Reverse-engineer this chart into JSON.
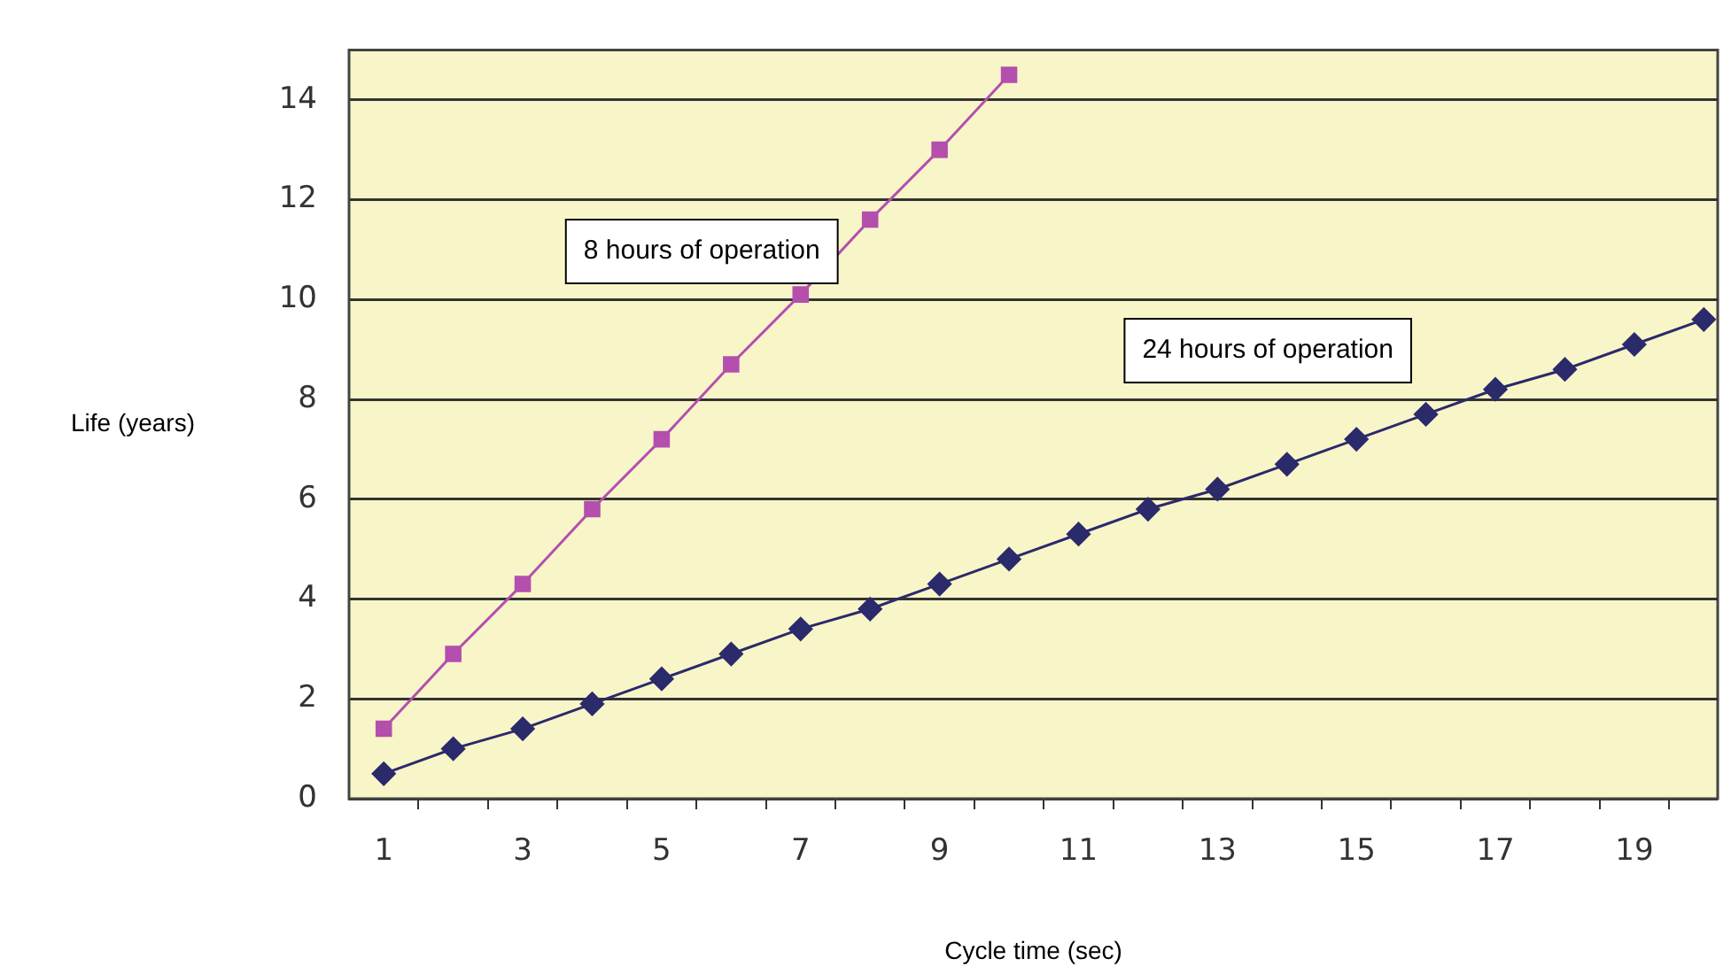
{
  "chart_data": {
    "type": "line",
    "xlabel": "Cycle time (sec)",
    "ylabel": "Life (years)",
    "x": [
      1,
      2,
      3,
      4,
      5,
      6,
      7,
      8,
      9,
      10,
      11,
      12,
      13,
      14,
      15,
      16,
      17,
      18,
      19,
      20
    ],
    "xlim": [
      0.5,
      20.2
    ],
    "xticks": [
      1,
      {
        "value": 1.5,
        "label": null
      },
      {
        "value": 2.5,
        "label": null
      },
      3,
      {
        "value": 3.5,
        "label": null
      },
      {
        "value": 4.5,
        "label": null
      },
      5,
      {
        "value": 5.5,
        "label": null
      },
      {
        "value": 6.5,
        "label": null
      },
      7,
      {
        "value": 7.5,
        "label": null
      },
      {
        "value": 8.5,
        "label": null
      },
      9,
      {
        "value": 9.5,
        "label": null
      },
      {
        "value": 10.5,
        "label": null
      },
      11,
      {
        "value": 11.5,
        "label": null
      },
      {
        "value": 12.5,
        "label": null
      },
      13,
      {
        "value": 13.5,
        "label": null
      },
      {
        "value": 14.5,
        "label": null
      },
      15,
      {
        "value": 15.5,
        "label": null
      },
      {
        "value": 16.5,
        "label": null
      },
      17,
      {
        "value": 17.5,
        "label": null
      },
      {
        "value": 18.5,
        "label": null
      },
      19,
      {
        "value": 19.5,
        "label": null
      }
    ],
    "series": [
      {
        "name": "8 hours of operation",
        "color": "#b44fae",
        "marker": "square",
        "values": [
          1.4,
          2.9,
          4.3,
          5.8,
          7.2,
          8.7,
          10.1,
          11.6,
          13.0,
          14.5,
          null,
          null,
          null,
          null,
          null,
          null,
          null,
          null,
          null,
          null
        ]
      },
      {
        "name": "24 hours of operation",
        "color": "#2b2a6b",
        "marker": "diamond",
        "values": [
          0.5,
          1.0,
          1.4,
          1.9,
          2.4,
          2.9,
          3.4,
          3.8,
          4.3,
          4.8,
          5.3,
          5.8,
          6.2,
          6.7,
          7.2,
          7.7,
          8.2,
          8.6,
          9.1,
          9.6
        ]
      }
    ],
    "ylim": [
      0,
      15
    ],
    "yticks": [
      0,
      2,
      4,
      6,
      8,
      10,
      12,
      14
    ],
    "grid": "y",
    "legend": false,
    "line_style": "solid"
  }
}
